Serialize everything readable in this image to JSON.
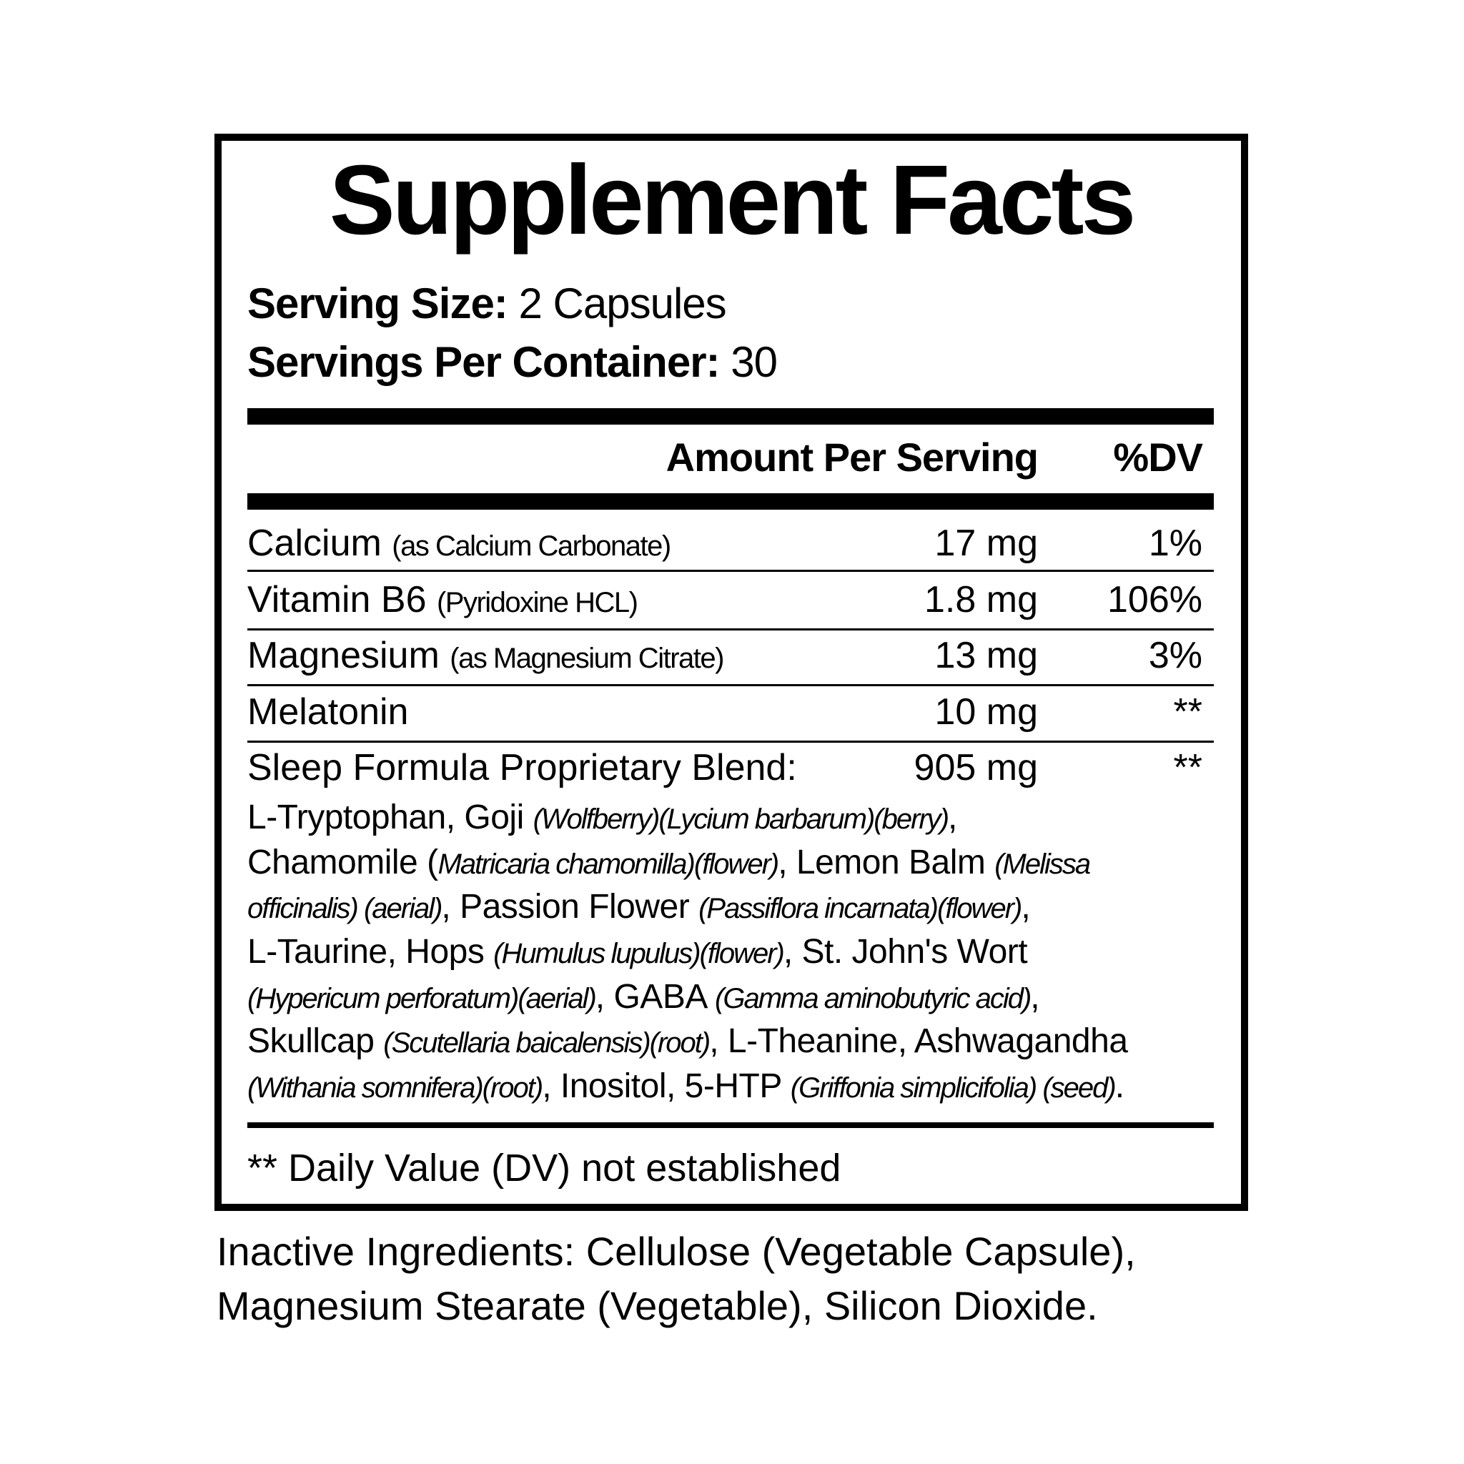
{
  "title": "Supplement Facts",
  "serving_size": {
    "label": "Serving Size:",
    "value": "2 Capsules"
  },
  "servings_per_container": {
    "label": "Servings Per Container:",
    "value": "30"
  },
  "header": {
    "amount": "Amount Per Serving",
    "dv": "%DV"
  },
  "rows": [
    {
      "name": "Calcium",
      "sub": "(as Calcium Carbonate)",
      "amount": "17 mg",
      "dv": "1%"
    },
    {
      "name": "Vitamin B6",
      "sub": "(Pyridoxine HCL)",
      "amount": "1.8 mg",
      "dv": "106%"
    },
    {
      "name": "Magnesium",
      "sub": "(as Magnesium Citrate)",
      "amount": "13 mg",
      "dv": "3%"
    },
    {
      "name": "Melatonin",
      "sub": "",
      "amount": "10 mg",
      "dv": "**"
    },
    {
      "name": "Sleep Formula Proprietary Blend:",
      "sub": "",
      "amount": "905 mg",
      "dv": "**"
    }
  ],
  "blend_lines": [
    [
      {
        "t": "L-Tryptophan, Goji "
      },
      {
        "t": "(Wolfberry)(Lycium barbarum)(berry)",
        "i": true
      },
      {
        "t": ","
      }
    ],
    [
      {
        "t": "Chamomile ("
      },
      {
        "t": "Matricaria chamomilla)(flower)",
        "i": true
      },
      {
        "t": ", Lemon Balm "
      },
      {
        "t": "(Melissa",
        "i": true
      }
    ],
    [
      {
        "t": "officinalis) (aerial)",
        "i": true
      },
      {
        "t": ", Passion Flower "
      },
      {
        "t": "(Passiflora incarnata)(flower)",
        "i": true
      },
      {
        "t": ","
      }
    ],
    [
      {
        "t": "L-Taurine, Hops "
      },
      {
        "t": "(Humulus lupulus)(flower)",
        "i": true
      },
      {
        "t": ", St. John's Wort"
      }
    ],
    [
      {
        "t": "(Hypericum perforatum)(aerial)",
        "i": true
      },
      {
        "t": ", GABA "
      },
      {
        "t": "(Gamma aminobutyric acid)",
        "i": true
      },
      {
        "t": ","
      }
    ],
    [
      {
        "t": "Skullcap "
      },
      {
        "t": "(Scutellaria baicalensis)(root)",
        "i": true
      },
      {
        "t": ", L-Theanine, Ashwagandha"
      }
    ],
    [
      {
        "t": "(Withania somnifera)(root)",
        "i": true
      },
      {
        "t": ", Inositol, 5-HTP "
      },
      {
        "t": "(Griffonia simplicifolia) (seed)",
        "i": true
      },
      {
        "t": "."
      }
    ]
  ],
  "footnote": "** Daily Value (DV) not established",
  "inactive": [
    "Inactive Ingredients: Cellulose (Vegetable Capsule),",
    "Magnesium Stearate (Vegetable), Silicon Dioxide."
  ]
}
